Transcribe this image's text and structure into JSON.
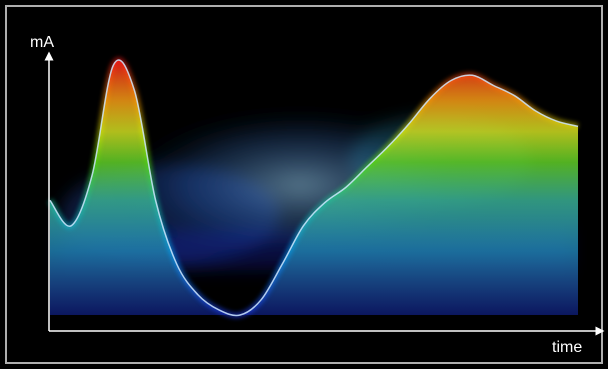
{
  "chart_data": {
    "type": "area",
    "title": "",
    "xlabel": "time",
    "ylabel": "mA",
    "grid": false,
    "legend": "none",
    "x": [
      0,
      0.04,
      0.08,
      0.12,
      0.16,
      0.2,
      0.24,
      0.28,
      0.32,
      0.36,
      0.4,
      0.44,
      0.48,
      0.52,
      0.56,
      0.6,
      0.64,
      0.68,
      0.72,
      0.76,
      0.8,
      0.84,
      0.88,
      0.92,
      0.96,
      1.0
    ],
    "ylim": [
      0,
      1
    ],
    "series": [
      {
        "values": [
          0.45,
          0.35,
          0.55,
          0.98,
          0.88,
          0.45,
          0.2,
          0.08,
          0.02,
          0.0,
          0.06,
          0.2,
          0.35,
          0.44,
          0.5,
          0.58,
          0.66,
          0.75,
          0.85,
          0.92,
          0.94,
          0.9,
          0.86,
          0.8,
          0.76,
          0.74
        ]
      }
    ],
    "colors": {
      "background": "#000000",
      "frame": "#ffffff",
      "gradient": [
        "#1e3cff",
        "#00a8ff",
        "#18c8a0",
        "#4de000",
        "#d6e800",
        "#ff9a00",
        "#ff1a1a"
      ]
    }
  }
}
